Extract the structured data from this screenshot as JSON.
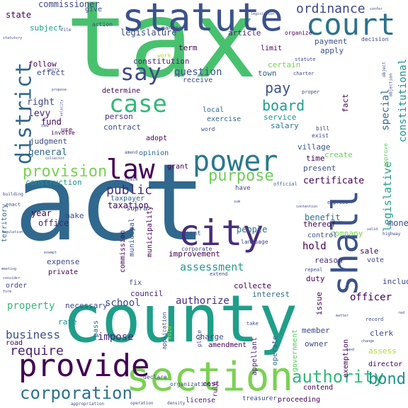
{
  "palette": {
    "dark_purple": "#440154",
    "purple": "#472d7b",
    "indigo": "#3b528b",
    "blue": "#2c728e",
    "teal": "#21918c",
    "sea_green": "#28ae80",
    "green": "#5ec962",
    "lime": "#addc30",
    "yellow": "#fde725"
  },
  "words": [
    {
      "text": "tax",
      "color": "#48c16e",
      "size": 150,
      "vertical": false
    },
    {
      "text": "act",
      "color": "#31688e",
      "size": 150,
      "vertical": false
    },
    {
      "text": "county",
      "color": "#1f9e89",
      "size": 92,
      "vertical": false
    },
    {
      "text": "statute",
      "color": "#3b528b",
      "size": 54,
      "vertical": false
    },
    {
      "text": "section",
      "color": "#7ad151",
      "size": 56,
      "vertical": false
    },
    {
      "text": "court",
      "color": "#2c728e",
      "size": 42,
      "vertical": false
    },
    {
      "text": "city",
      "color": "#472d7b",
      "size": 50,
      "vertical": false
    },
    {
      "text": "shall",
      "color": "#3b528b",
      "size": 50,
      "vertical": true
    },
    {
      "text": "provide",
      "color": "#440154",
      "size": 44,
      "vertical": false
    },
    {
      "text": "power",
      "color": "#2a788e",
      "size": 40,
      "vertical": false
    },
    {
      "text": "law",
      "color": "#440154",
      "size": 38,
      "vertical": false
    },
    {
      "text": "case",
      "color": "#35b779",
      "size": 34,
      "vertical": false
    },
    {
      "text": "say",
      "color": "#3e4989",
      "size": 32,
      "vertical": false
    },
    {
      "text": "district",
      "color": "#31688e",
      "size": 30,
      "vertical": true
    },
    {
      "text": "corporation",
      "color": "#2c728e",
      "size": 24,
      "vertical": false
    },
    {
      "text": "authority",
      "color": "#35b779",
      "size": 24,
      "vertical": false
    },
    {
      "text": "bond",
      "color": "#21918c",
      "size": 22,
      "vertical": false
    },
    {
      "text": "provision",
      "color": "#7ad151",
      "size": 22,
      "vertical": false
    },
    {
      "text": "purpose",
      "color": "#6ece58",
      "size": 22,
      "vertical": false
    },
    {
      "text": "ordinance",
      "color": "#3e4989",
      "size": 18,
      "vertical": false
    },
    {
      "text": "pay",
      "color": "#3b528b",
      "size": 20,
      "vertical": false
    },
    {
      "text": "board",
      "color": "#1f9e89",
      "size": 20,
      "vertical": false
    },
    {
      "text": "public",
      "color": "#472d7b",
      "size": 18,
      "vertical": false
    },
    {
      "text": "require",
      "color": "#482475",
      "size": 18,
      "vertical": false
    },
    {
      "text": "business",
      "color": "#3b528b",
      "size": 16,
      "vertical": false
    },
    {
      "text": "legislative",
      "color": "#1f9e89",
      "size": 15,
      "vertical": true
    },
    {
      "text": "special",
      "color": "#31688e",
      "size": 14,
      "vertical": true
    },
    {
      "text": "constitutional",
      "color": "#21918c",
      "size": 14,
      "vertical": true
    },
    {
      "text": "assessment",
      "color": "#1f9e89",
      "size": 15,
      "vertical": false
    },
    {
      "text": "question",
      "color": "#3b528b",
      "size": 14,
      "vertical": false
    },
    {
      "text": "property",
      "color": "#35b779",
      "size": 14,
      "vertical": false
    },
    {
      "text": "school",
      "color": "#3e4989",
      "size": 14,
      "vertical": false
    },
    {
      "text": "authorize",
      "color": "#472d7b",
      "size": 14,
      "vertical": false
    },
    {
      "text": "officer",
      "color": "#440154",
      "size": 14,
      "vertical": false
    },
    {
      "text": "hold",
      "color": "#440154",
      "size": 14,
      "vertical": false
    },
    {
      "text": "impose",
      "color": "#482475",
      "size": 14,
      "vertical": false
    },
    {
      "text": "certificate",
      "color": "#440154",
      "size": 13,
      "vertical": false
    },
    {
      "text": "general",
      "color": "#31688e",
      "size": 13,
      "vertical": false
    },
    {
      "text": "right",
      "color": "#3e4989",
      "size": 13,
      "vertical": false
    },
    {
      "text": "levy",
      "color": "#482475",
      "size": 13,
      "vertical": false
    },
    {
      "text": "fund",
      "color": "#440154",
      "size": 12,
      "vertical": false
    },
    {
      "text": "contract",
      "color": "#3b528b",
      "size": 11,
      "vertical": false
    },
    {
      "text": "person",
      "color": "#472d7b",
      "size": 11,
      "vertical": false
    },
    {
      "text": "judgment",
      "color": "#3e4989",
      "size": 11,
      "vertical": false
    },
    {
      "text": "construction",
      "color": "#21918c",
      "size": 11,
      "vertical": false
    },
    {
      "text": "taxation",
      "color": "#440154",
      "size": 12,
      "vertical": false
    },
    {
      "text": "people",
      "color": "#2c728e",
      "size": 12,
      "vertical": false
    },
    {
      "text": "benefit",
      "color": "#2c728e",
      "size": 12,
      "vertical": false
    },
    {
      "text": "money",
      "color": "#3e4989",
      "size": 12,
      "vertical": false
    },
    {
      "text": "office",
      "color": "#482475",
      "size": 12,
      "vertical": false
    },
    {
      "text": "year",
      "color": "#440154",
      "size": 12,
      "vertical": false
    },
    {
      "text": "make",
      "color": "#3e4989",
      "size": 11,
      "vertical": false
    },
    {
      "text": "commissioner",
      "color": "#3e4989",
      "size": 12,
      "vertical": false
    },
    {
      "text": "legislature",
      "color": "#3e4989",
      "size": 12,
      "vertical": false
    },
    {
      "text": "article",
      "color": "#482475",
      "size": 11,
      "vertical": false
    },
    {
      "text": "state",
      "color": "#440154",
      "size": 12,
      "vertical": false
    },
    {
      "text": "subject",
      "color": "#1f9e89",
      "size": 11,
      "vertical": false
    },
    {
      "text": "give",
      "color": "#3e4989",
      "size": 10,
      "vertical": false
    },
    {
      "text": "term",
      "color": "#440154",
      "size": 11,
      "vertical": false
    },
    {
      "text": "payment",
      "color": "#3b528b",
      "size": 11,
      "vertical": false
    },
    {
      "text": "limit",
      "color": "#440154",
      "size": 10,
      "vertical": false
    },
    {
      "text": "apply",
      "color": "#3b528b",
      "size": 11,
      "vertical": false
    },
    {
      "text": "constitution",
      "color": "#482475",
      "size": 11,
      "vertical": false
    },
    {
      "text": "follow",
      "color": "#440154",
      "size": 11,
      "vertical": false
    },
    {
      "text": "effect",
      "color": "#3e4989",
      "size": 11,
      "vertical": false
    },
    {
      "text": "town",
      "color": "#31688e",
      "size": 11,
      "vertical": false
    },
    {
      "text": "certain",
      "color": "#7ad151",
      "size": 11,
      "vertical": false
    },
    {
      "text": "service",
      "color": "#21918c",
      "size": 11,
      "vertical": false
    },
    {
      "text": "salary",
      "color": "#2c728e",
      "size": 11,
      "vertical": false
    },
    {
      "text": "fact",
      "color": "#440154",
      "size": 11,
      "vertical": true
    },
    {
      "text": "village",
      "color": "#3b528b",
      "size": 11,
      "vertical": false
    },
    {
      "text": "create",
      "color": "#6ece58",
      "size": 11,
      "vertical": false
    },
    {
      "text": "time",
      "color": "#440154",
      "size": 11,
      "vertical": false
    },
    {
      "text": "present",
      "color": "#3b528b",
      "size": 11,
      "vertical": false
    },
    {
      "text": "exercise",
      "color": "#31688e",
      "size": 10,
      "vertical": false
    },
    {
      "text": "local",
      "color": "#31688e",
      "size": 10,
      "vertical": false
    },
    {
      "text": "receive",
      "color": "#3e4989",
      "size": 10,
      "vertical": false
    },
    {
      "text": "determine",
      "color": "#440154",
      "size": 10,
      "vertical": false
    },
    {
      "text": "adopt",
      "color": "#440154",
      "size": 10,
      "vertical": false
    },
    {
      "text": "opinion",
      "color": "#31688e",
      "size": 10,
      "vertical": false
    },
    {
      "text": "grant",
      "color": "#440154",
      "size": 10,
      "vertical": false
    },
    {
      "text": "supra",
      "color": "#3e4989",
      "size": 10,
      "vertical": false
    },
    {
      "text": "taxpayer",
      "color": "#31688e",
      "size": 10,
      "vertical": false
    },
    {
      "text": "commission",
      "color": "#440154",
      "size": 10,
      "vertical": true
    },
    {
      "text": "municipal",
      "color": "#3b528b",
      "size": 10,
      "vertical": true
    },
    {
      "text": "municipality",
      "color": "#440154",
      "size": 10,
      "vertical": true
    },
    {
      "text": "improvement",
      "color": "#440154",
      "size": 11,
      "vertical": false
    },
    {
      "text": "expense",
      "color": "#3e4989",
      "size": 11,
      "vertical": false
    },
    {
      "text": "private",
      "color": "#440154",
      "size": 10,
      "vertical": false
    },
    {
      "text": "fix",
      "color": "#3e4989",
      "size": 10,
      "vertical": false
    },
    {
      "text": "council",
      "color": "#482475",
      "size": 11,
      "vertical": false
    },
    {
      "text": "collecte",
      "color": "#440154",
      "size": 11,
      "vertical": false
    },
    {
      "text": "duty",
      "color": "#440154",
      "size": 11,
      "vertical": false
    },
    {
      "text": "reason",
      "color": "#472d7b",
      "size": 11,
      "vertical": false
    },
    {
      "text": "company",
      "color": "#7ad151",
      "size": 11,
      "vertical": false
    },
    {
      "text": "control",
      "color": "#3b528b",
      "size": 10,
      "vertical": false
    },
    {
      "text": "thereof",
      "color": "#440154",
      "size": 11,
      "vertical": false
    },
    {
      "text": "sale",
      "color": "#440154",
      "size": 11,
      "vertical": false
    },
    {
      "text": "vote",
      "color": "#3e4989",
      "size": 10,
      "vertical": false
    },
    {
      "text": "include",
      "color": "#3e4989",
      "size": 11,
      "vertical": false
    },
    {
      "text": "issue",
      "color": "#440154",
      "size": 11,
      "vertical": true
    },
    {
      "text": "interest",
      "color": "#31688e",
      "size": 11,
      "vertical": false
    },
    {
      "text": "necessary",
      "color": "#3e4989",
      "size": 11,
      "vertical": false
    },
    {
      "text": "rate",
      "color": "#21918c",
      "size": 11,
      "vertical": false
    },
    {
      "text": "pass",
      "color": "#31688e",
      "size": 10,
      "vertical": true
    },
    {
      "text": "charge",
      "color": "#3e4989",
      "size": 11,
      "vertical": false
    },
    {
      "text": "member",
      "color": "#3e4989",
      "size": 11,
      "vertical": false
    },
    {
      "text": "owner",
      "color": "#3e4989",
      "size": 11,
      "vertical": false
    },
    {
      "text": "clerk",
      "color": "#3e4989",
      "size": 11,
      "vertical": false
    },
    {
      "text": "assess",
      "color": "#addc30",
      "size": 11,
      "vertical": false
    },
    {
      "text": "director",
      "color": "#440154",
      "size": 10,
      "vertical": false
    },
    {
      "text": "exemption",
      "color": "#440154",
      "size": 10,
      "vertical": true
    },
    {
      "text": "government",
      "color": "#5ec962",
      "size": 10,
      "vertical": true
    },
    {
      "text": "operate",
      "color": "#31688e",
      "size": 10,
      "vertical": true
    },
    {
      "text": "appellant",
      "color": "#482475",
      "size": 10,
      "vertical": true
    },
    {
      "text": "amendment",
      "color": "#440154",
      "size": 10,
      "vertical": false
    },
    {
      "text": "road",
      "color": "#440154",
      "size": 10,
      "vertical": false
    },
    {
      "text": "order",
      "color": "#3e4989",
      "size": 10,
      "vertical": false
    },
    {
      "text": "territory",
      "color": "#31688e",
      "size": 10,
      "vertical": true
    },
    {
      "text": "contend",
      "color": "#440154",
      "size": 10,
      "vertical": false
    },
    {
      "text": "cost",
      "color": "#440154",
      "size": 10,
      "vertical": false
    },
    {
      "text": "license",
      "color": "#482475",
      "size": 10,
      "vertical": false
    },
    {
      "text": "treasurer",
      "color": "#3e4989",
      "size": 9,
      "vertical": false
    },
    {
      "text": "proceeding",
      "color": "#440154",
      "size": 10,
      "vertical": false
    },
    {
      "text": "rule",
      "color": "#440154",
      "size": 9,
      "vertical": true
    },
    {
      "text": "cent",
      "color": "#3b528b",
      "size": 9,
      "vertical": false
    },
    {
      "text": "work",
      "color": "#addc30",
      "size": 8,
      "vertical": false
    },
    {
      "text": "action",
      "color": "#3e4989",
      "size": 8,
      "vertical": false
    },
    {
      "text": "manner",
      "color": "#3e4989",
      "size": 8,
      "vertical": false
    },
    {
      "text": "organize",
      "color": "#440154",
      "size": 8,
      "vertical": false
    },
    {
      "text": "decision",
      "color": "#3e4989",
      "size": 8,
      "vertical": false
    },
    {
      "text": "charter",
      "color": "#3e4989",
      "size": 7,
      "vertical": false
    },
    {
      "text": "exist",
      "color": "#3e4989",
      "size": 8,
      "vertical": false
    },
    {
      "text": "bill",
      "color": "#3e4989",
      "size": 8,
      "vertical": false
    },
    {
      "text": "word",
      "color": "#3e4989",
      "size": 8,
      "vertical": false
    },
    {
      "text": "approve",
      "color": "#5ec962",
      "size": 8,
      "vertical": true
    },
    {
      "text": "proper",
      "color": "#3e4989",
      "size": 7,
      "vertical": false
    },
    {
      "text": "involve",
      "color": "#440154",
      "size": 8,
      "vertical": false
    },
    {
      "text": "use",
      "color": "#440154",
      "size": 9,
      "vertical": false
    },
    {
      "text": "language",
      "color": "#3e4989",
      "size": 8,
      "vertical": false
    },
    {
      "text": "official",
      "color": "#31688e",
      "size": 7,
      "vertical": false
    },
    {
      "text": "have",
      "color": "#3e4989",
      "size": 9,
      "vertical": false
    },
    {
      "text": "corporate",
      "color": "#3e4989",
      "size": 8,
      "vertical": false
    },
    {
      "text": "place",
      "color": "#3e4989",
      "size": 8,
      "vertical": true
    },
    {
      "text": "void",
      "color": "#addc30",
      "size": 8,
      "vertical": true
    },
    {
      "text": "application",
      "color": "#3e4989",
      "size": 8,
      "vertical": true
    },
    {
      "text": "declare",
      "color": "#3e4989",
      "size": 8,
      "vertical": false
    },
    {
      "text": "organization",
      "color": "#3e4989",
      "size": 8,
      "vertical": false
    },
    {
      "text": "statute",
      "color": "#3e4989",
      "size": 7,
      "vertical": false
    },
    {
      "text": "extend",
      "color": "#3e4989",
      "size": 7,
      "vertical": false
    },
    {
      "text": "take",
      "color": "#3e4989",
      "size": 7,
      "vertical": false
    },
    {
      "text": "repeal",
      "color": "#3e4989",
      "size": 7,
      "vertical": false
    },
    {
      "text": "record",
      "color": "#3e4989",
      "size": 7,
      "vertical": false
    },
    {
      "text": "express",
      "color": "#3e4989",
      "size": 7,
      "vertical": false
    },
    {
      "text": "highway",
      "color": "#3e4989",
      "size": 6,
      "vertical": false
    },
    {
      "text": "claim",
      "color": "#3e4989",
      "size": 6,
      "vertical": false
    },
    {
      "text": "amend",
      "color": "#3e4989",
      "size": 6,
      "vertical": false
    },
    {
      "text": "enact",
      "color": "#3e4989",
      "size": 7,
      "vertical": false
    },
    {
      "text": "carry",
      "color": "#3e4989",
      "size": 6,
      "vertical": false
    },
    {
      "text": "new",
      "color": "#3e4989",
      "size": 6,
      "vertical": false
    },
    {
      "text": "file",
      "color": "#3e4989",
      "size": 6,
      "vertical": false
    },
    {
      "text": "operation",
      "color": "#3e4989",
      "size": 6,
      "vertical": false
    },
    {
      "text": "density",
      "color": "#3e4989",
      "size": 6,
      "vertical": false
    },
    {
      "text": "appropriation",
      "color": "#3e4989",
      "size": 6,
      "vertical": false
    },
    {
      "text": "object",
      "color": "#3e4989",
      "size": 6,
      "vertical": true
    },
    {
      "text": "objection",
      "color": "#3e4989",
      "size": 6,
      "vertical": true
    },
    {
      "text": "building",
      "color": "#3e4989",
      "size": 6,
      "vertical": false
    },
    {
      "text": "meeting",
      "color": "#3e4989",
      "size": 5,
      "vertical": false
    },
    {
      "text": "regulation",
      "color": "#3e4989",
      "size": 5,
      "vertical": false
    },
    {
      "text": "exempt",
      "color": "#3e4989",
      "size": 5,
      "vertical": false
    },
    {
      "text": "consider",
      "color": "#3e4989",
      "size": 5,
      "vertical": false
    },
    {
      "text": "collector",
      "color": "#3e4989",
      "size": 5,
      "vertical": false
    },
    {
      "text": "propose",
      "color": "#3e4989",
      "size": 5,
      "vertical": false
    },
    {
      "text": "velocity",
      "color": "#3e4989",
      "size": 5,
      "vertical": true
    },
    {
      "text": "contention",
      "color": "#3e4989",
      "size": 5,
      "vertical": false
    },
    {
      "text": "matter",
      "color": "#3e4989",
      "size": 5,
      "vertical": false
    },
    {
      "text": "legislation",
      "color": "#3e4989",
      "size": 5,
      "vertical": false
    },
    {
      "text": "statutory",
      "color": "#3e4989",
      "size": 5,
      "vertical": false
    },
    {
      "text": "confer",
      "color": "#3e4989",
      "size": 5,
      "vertical": false
    },
    {
      "text": "valid",
      "color": "#3e4989",
      "size": 5,
      "vertical": false
    },
    {
      "text": "form",
      "color": "#3e4989",
      "size": 5,
      "vertical": false
    },
    {
      "text": "sum",
      "color": "#3e4989",
      "size": 5,
      "vertical": false
    },
    {
      "text": "there",
      "color": "#3e4989",
      "size": 5,
      "vertical": false
    },
    {
      "text": "change",
      "color": "#3e4989",
      "size": 5,
      "vertical": false
    },
    {
      "text": "land",
      "color": "#3e4989",
      "size": 5,
      "vertical": false
    },
    {
      "text": "red",
      "color": "#3e4989",
      "size": 5,
      "vertical": false
    }
  ]
}
